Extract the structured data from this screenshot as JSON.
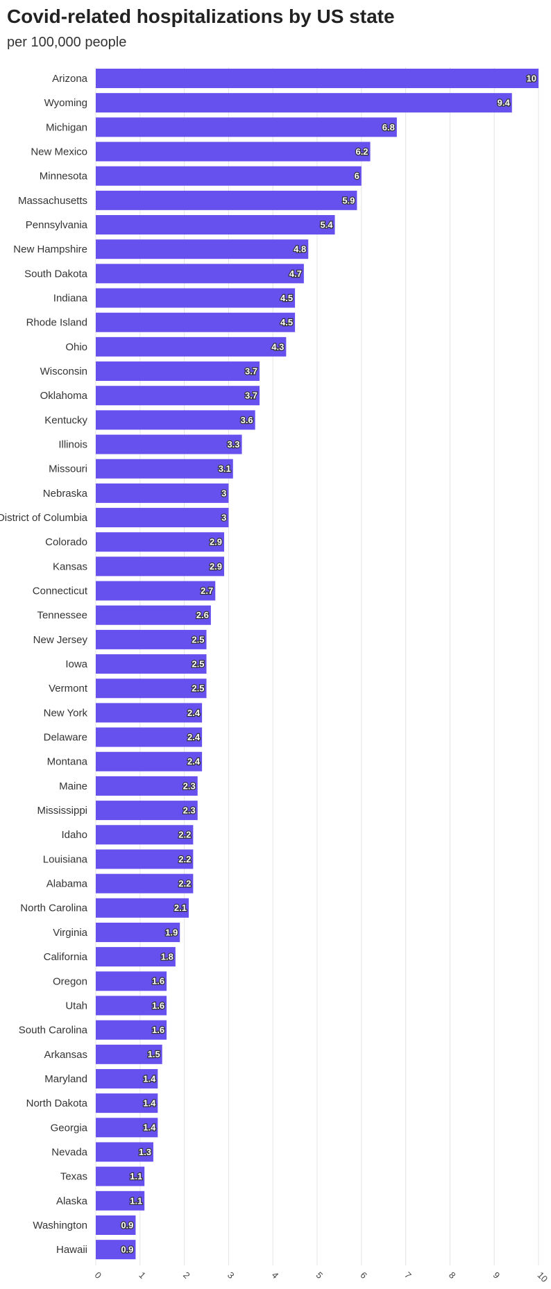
{
  "title": "Covid-related hospitalizations by US state",
  "subtitle": "per 100,000 people",
  "chart_data": {
    "type": "bar",
    "orientation": "horizontal",
    "categories": [
      "Arizona",
      "Wyoming",
      "Michigan",
      "New Mexico",
      "Minnesota",
      "Massachusetts",
      "Pennsylvania",
      "New Hampshire",
      "South Dakota",
      "Indiana",
      "Rhode Island",
      "Ohio",
      "Wisconsin",
      "Oklahoma",
      "Kentucky",
      "Illinois",
      "Missouri",
      "Nebraska",
      "District of Columbia",
      "Colorado",
      "Kansas",
      "Connecticut",
      "Tennessee",
      "New Jersey",
      "Iowa",
      "Vermont",
      "New York",
      "Delaware",
      "Montana",
      "Maine",
      "Mississippi",
      "Idaho",
      "Louisiana",
      "Alabama",
      "North Carolina",
      "Virginia",
      "California",
      "Oregon",
      "Utah",
      "South Carolina",
      "Arkansas",
      "Maryland",
      "North Dakota",
      "Georgia",
      "Nevada",
      "Texas",
      "Alaska",
      "Washington",
      "Hawaii"
    ],
    "values": [
      10,
      9.4,
      6.8,
      6.2,
      6,
      5.9,
      5.4,
      4.8,
      4.7,
      4.5,
      4.5,
      4.3,
      3.7,
      3.7,
      3.6,
      3.3,
      3.1,
      3,
      3,
      2.9,
      2.9,
      2.7,
      2.6,
      2.5,
      2.5,
      2.5,
      2.4,
      2.4,
      2.4,
      2.3,
      2.3,
      2.2,
      2.2,
      2.2,
      2.1,
      1.9,
      1.8,
      1.6,
      1.6,
      1.6,
      1.5,
      1.4,
      1.4,
      1.4,
      1.3,
      1.1,
      1.1,
      0.9,
      0.9
    ],
    "xlim": [
      0,
      10
    ],
    "xticks": [
      "0",
      "1",
      "2",
      "3",
      "4",
      "5",
      "6",
      "7",
      "8",
      "9",
      "10"
    ],
    "grid": true,
    "bar_color": "#6650ee",
    "label_color": "#ffffff"
  }
}
